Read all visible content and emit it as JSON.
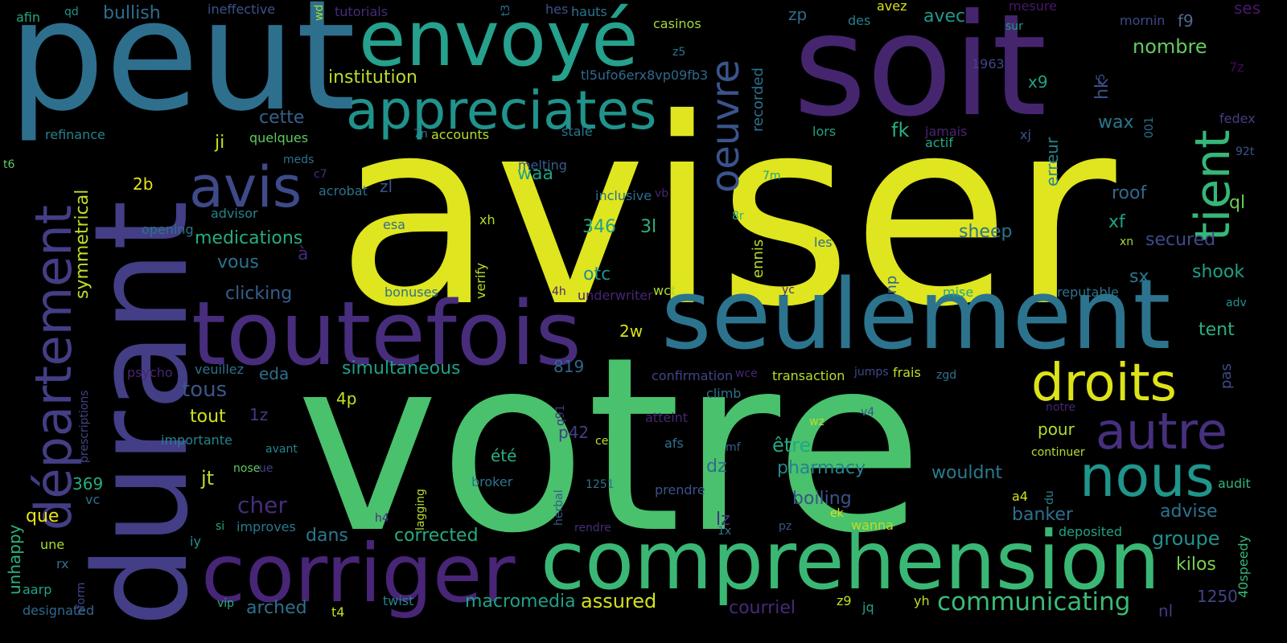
{
  "words": [
    {
      "text": "aviser",
      "color": "#dfe51e"
    },
    {
      "text": "votre",
      "color": "#4ac16d"
    },
    {
      "text": "durant",
      "color": "#433e85"
    },
    {
      "text": "peut",
      "color": "#2e6f8e"
    },
    {
      "text": "soit",
      "color": "#46256f"
    },
    {
      "text": "envoyé",
      "color": "#25a18e"
    },
    {
      "text": "seulement",
      "color": "#2c738e"
    },
    {
      "text": "toutefois",
      "color": "#472d7b"
    },
    {
      "text": "corriger",
      "color": "#482576"
    },
    {
      "text": "comprehension",
      "color": "#3ab774"
    },
    {
      "text": "appreciates",
      "color": "#20938c"
    },
    {
      "text": "département",
      "color": "#433e85"
    },
    {
      "text": "avis",
      "color": "#3e4a89"
    },
    {
      "text": "oeuvre",
      "color": "#3a548c"
    },
    {
      "text": "tient",
      "color": "#35b779"
    },
    {
      "text": "droits",
      "color": "#dde318"
    },
    {
      "text": "autre",
      "color": "#46307e"
    },
    {
      "text": "nous",
      "color": "#1f958b"
    },
    {
      "text": "communicating",
      "color": "#3bbb75"
    },
    {
      "text": "institution",
      "color": "#b8de29"
    },
    {
      "text": "bullish",
      "color": "#2e6e8e"
    },
    {
      "text": "cette",
      "color": "#35608d"
    },
    {
      "text": "ji",
      "color": "#c2df23"
    },
    {
      "text": "2b",
      "color": "#e5e419"
    },
    {
      "text": "symmetrical",
      "color": "#bddf26"
    },
    {
      "text": "medications",
      "color": "#26ad81"
    },
    {
      "text": "vous",
      "color": "#2c728e"
    },
    {
      "text": "clicking",
      "color": "#355f8d"
    },
    {
      "text": "346",
      "color": "#20a386"
    },
    {
      "text": "3l",
      "color": "#2db27d"
    },
    {
      "text": "otc",
      "color": "#21918c"
    },
    {
      "text": "waa",
      "color": "#1fa088"
    },
    {
      "text": "fk",
      "color": "#29af7f"
    },
    {
      "text": "x9",
      "color": "#20a386"
    },
    {
      "text": "avec",
      "color": "#1f998a"
    },
    {
      "text": "nombre",
      "color": "#63cb5f"
    },
    {
      "text": "wax",
      "color": "#2a768e"
    },
    {
      "text": "roof",
      "color": "#31688e"
    },
    {
      "text": "sheep",
      "color": "#2c728e"
    },
    {
      "text": "xf",
      "color": "#20a386"
    },
    {
      "text": "secured",
      "color": "#3e4a89"
    },
    {
      "text": "sx",
      "color": "#2a778e"
    },
    {
      "text": "shook",
      "color": "#1fa088"
    },
    {
      "text": "tent",
      "color": "#2ab07f"
    },
    {
      "text": "ql",
      "color": "#6ccd5a"
    },
    {
      "text": "hk",
      "color": "#3a538b"
    },
    {
      "text": "erreur",
      "color": "#25848e"
    },
    {
      "text": "f9",
      "color": "#4d6a8d"
    },
    {
      "text": "ses",
      "color": "#48186a"
    },
    {
      "text": "zp",
      "color": "#2f6c8e"
    },
    {
      "text": "recorded",
      "color": "#2c718e"
    },
    {
      "text": "fnp",
      "color": "#31678e"
    },
    {
      "text": "ennis",
      "color": "#b5de2b"
    },
    {
      "text": "2w",
      "color": "#d8e219"
    },
    {
      "text": "819",
      "color": "#31678e"
    },
    {
      "text": "simultaneous",
      "color": "#1f9e89"
    },
    {
      "text": "tous",
      "color": "#39568c"
    },
    {
      "text": "eda",
      "color": "#2e6e8e"
    },
    {
      "text": "4p",
      "color": "#c8e020"
    },
    {
      "text": "1z",
      "color": "#443983"
    },
    {
      "text": "p42",
      "color": "#423f85"
    },
    {
      "text": "été",
      "color": "#2ab07f"
    },
    {
      "text": "tout",
      "color": "#d0e11c"
    },
    {
      "text": "jt",
      "color": "#b8de29"
    },
    {
      "text": "369",
      "color": "#27ad81"
    },
    {
      "text": "que",
      "color": "#e5e419"
    },
    {
      "text": "cher",
      "color": "#472d7b"
    },
    {
      "text": "dz",
      "color": "#2f6c8e"
    },
    {
      "text": "être",
      "color": "#22a884"
    },
    {
      "text": "pharmacy",
      "color": "#26828e"
    },
    {
      "text": "boiling",
      "color": "#3b528b"
    },
    {
      "text": "lz",
      "color": "#46337f"
    },
    {
      "text": "wouldnt",
      "color": "#297b8e"
    },
    {
      "text": "pour",
      "color": "#b2dd2d"
    },
    {
      "text": "groupe",
      "color": "#21918c"
    },
    {
      "text": "banker",
      "color": "#2d708e"
    },
    {
      "text": "advise",
      "color": "#2c738e"
    },
    {
      "text": "kilos",
      "color": "#7ad151"
    },
    {
      "text": "1250",
      "color": "#414487"
    },
    {
      "text": "nl",
      "color": "#443a83"
    },
    {
      "text": "pas",
      "color": "#3e4a89"
    },
    {
      "text": "dans",
      "color": "#2a788e"
    },
    {
      "text": "corrected",
      "color": "#25ab82"
    },
    {
      "text": "macromedia",
      "color": "#1fa188"
    },
    {
      "text": "assured",
      "color": "#d2e21b"
    },
    {
      "text": "arched",
      "color": "#2d718e"
    },
    {
      "text": "courriel",
      "color": "#482878"
    },
    {
      "text": "unhappy",
      "color": "#2db27d"
    },
    {
      "text": "afin",
      "color": "#22a884"
    },
    {
      "text": "qd",
      "color": "#21918c"
    },
    {
      "text": "ineffective",
      "color": "#3b528b"
    },
    {
      "text": "wd",
      "color": "#a8db34"
    },
    {
      "text": "tutorials",
      "color": "#472c7a"
    },
    {
      "text": "t3",
      "color": "#2d708e"
    },
    {
      "text": "hes",
      "color": "#3b528b"
    },
    {
      "text": "hauts",
      "color": "#2a768e"
    },
    {
      "text": "casinos",
      "color": "#a2da37"
    },
    {
      "text": "des",
      "color": "#277f8e"
    },
    {
      "text": "avez",
      "color": "#d8e219"
    },
    {
      "text": "mesure",
      "color": "#48186a"
    },
    {
      "text": "sur",
      "color": "#1f9f88"
    },
    {
      "text": "mornin",
      "color": "#3e4a89"
    },
    {
      "text": "7z",
      "color": "#46085c"
    },
    {
      "text": "z5",
      "color": "#2a768e"
    },
    {
      "text": "tl5ufo6erx8vp09fb3",
      "color": "#31688e"
    },
    {
      "text": "1963",
      "color": "#414487"
    },
    {
      "text": "r5",
      "color": "#3e4c8a"
    },
    {
      "text": "refinance",
      "color": "#26828e"
    },
    {
      "text": "quelques",
      "color": "#5ec962"
    },
    {
      "text": "7n",
      "color": "#2a788e"
    },
    {
      "text": "accounts",
      "color": "#b5de2b"
    },
    {
      "text": "stale",
      "color": "#2a768e"
    },
    {
      "text": "lors",
      "color": "#1fa088"
    },
    {
      "text": "jamais",
      "color": "#482475"
    },
    {
      "text": "xj",
      "color": "#3a548c"
    },
    {
      "text": "001",
      "color": "#2c728e"
    },
    {
      "text": "fedex",
      "color": "#433e85"
    },
    {
      "text": "92t",
      "color": "#39568c"
    },
    {
      "text": "t6",
      "color": "#5ec962"
    },
    {
      "text": "meds",
      "color": "#2c728e"
    },
    {
      "text": "c7",
      "color": "#472d7b"
    },
    {
      "text": "acrobat",
      "color": "#2d708e"
    },
    {
      "text": "melting",
      "color": "#365c8d"
    },
    {
      "text": "actif",
      "color": "#25ab82"
    },
    {
      "text": "7m",
      "color": "#20a386"
    },
    {
      "text": "inclusive",
      "color": "#2d708e"
    },
    {
      "text": "vb",
      "color": "#482475"
    },
    {
      "text": "zl",
      "color": "#3a548c"
    },
    {
      "text": "advisor",
      "color": "#26828e"
    },
    {
      "text": "opening",
      "color": "#2c728e"
    },
    {
      "text": "esa",
      "color": "#2d708e"
    },
    {
      "text": "xh",
      "color": "#b5de2b"
    },
    {
      "text": "8r",
      "color": "#2ab07f"
    },
    {
      "text": "les",
      "color": "#306a8e"
    },
    {
      "text": "xn",
      "color": "#a2da37"
    },
    {
      "text": "à",
      "color": "#482878"
    },
    {
      "text": "verify",
      "color": "#b5de2b"
    },
    {
      "text": "bonuses",
      "color": "#2c728e"
    },
    {
      "text": "4h",
      "color": "#482576"
    },
    {
      "text": "underwriter",
      "color": "#482475"
    },
    {
      "text": "wct",
      "color": "#a8db34"
    },
    {
      "text": "yc",
      "color": "#482878"
    },
    {
      "text": "mise",
      "color": "#22a884"
    },
    {
      "text": "reputable",
      "color": "#2c738e"
    },
    {
      "text": "adv",
      "color": "#21918c"
    },
    {
      "text": "psycho",
      "color": "#482475"
    },
    {
      "text": "veuillez",
      "color": "#2d708e"
    },
    {
      "text": "prescriptions",
      "color": "#414487"
    },
    {
      "text": "confirmation",
      "color": "#414487"
    },
    {
      "text": "wce",
      "color": "#482576"
    },
    {
      "text": "transaction",
      "color": "#b5de2b"
    },
    {
      "text": "jumps",
      "color": "#3f4788"
    },
    {
      "text": "frais",
      "color": "#c2df23"
    },
    {
      "text": "zgd",
      "color": "#2c728e"
    },
    {
      "text": "climb",
      "color": "#2c718e"
    },
    {
      "text": "atteint",
      "color": "#482576"
    },
    {
      "text": "q91",
      "color": "#46307e"
    },
    {
      "text": "wz",
      "color": "#b8de29"
    },
    {
      "text": "v4",
      "color": "#3b528b"
    },
    {
      "text": "notre",
      "color": "#482576"
    },
    {
      "text": "importante",
      "color": "#26828e"
    },
    {
      "text": "avant",
      "color": "#26828e"
    },
    {
      "text": "ce",
      "color": "#c2df23"
    },
    {
      "text": "afs",
      "color": "#2c728e"
    },
    {
      "text": "mf",
      "color": "#355f8d"
    },
    {
      "text": "continuer",
      "color": "#b5de2b"
    },
    {
      "text": "nose",
      "color": "#5ec962"
    },
    {
      "text": "ue",
      "color": "#433e85"
    },
    {
      "text": "broker",
      "color": "#2a768e"
    },
    {
      "text": "lagging",
      "color": "#b8de29"
    },
    {
      "text": "herbal",
      "color": "#365c8d"
    },
    {
      "text": "1251",
      "color": "#2c728e"
    },
    {
      "text": "prendre",
      "color": "#3b528b"
    },
    {
      "text": "du",
      "color": "#25848e"
    },
    {
      "text": "a4",
      "color": "#d0e11c"
    },
    {
      "text": "audit",
      "color": "#31b57b"
    },
    {
      "text": "si",
      "color": "#22a884"
    },
    {
      "text": "improves",
      "color": "#2a788e"
    },
    {
      "text": "h4",
      "color": "#472d7b"
    },
    {
      "text": "rendre",
      "color": "#472d7b"
    },
    {
      "text": "1x",
      "color": "#2a788e"
    },
    {
      "text": "pz",
      "color": "#3b528b"
    },
    {
      "text": "ek",
      "color": "#d8e219"
    },
    {
      "text": "wanna",
      "color": "#b8de29"
    },
    {
      "text": "deposited",
      "color": "#20a386"
    },
    {
      "text": "40speedy",
      "color": "#35b779"
    },
    {
      "text": "une",
      "color": "#a8db34"
    },
    {
      "text": "iy",
      "color": "#20938c"
    },
    {
      "text": "rx",
      "color": "#2c728e"
    },
    {
      "text": "aarp",
      "color": "#20a386"
    },
    {
      "text": "nform",
      "color": "#3f4788"
    },
    {
      "text": "vc",
      "color": "#2d708e"
    },
    {
      "text": "designated",
      "color": "#31678e"
    },
    {
      "text": "vip",
      "color": "#2ab07f"
    },
    {
      "text": "t4",
      "color": "#c2df23"
    },
    {
      "text": "twist",
      "color": "#26828e"
    },
    {
      "text": "z9",
      "color": "#c2df23"
    },
    {
      "text": "jq",
      "color": "#20a386"
    },
    {
      "text": "yh",
      "color": "#c2df23"
    }
  ]
}
